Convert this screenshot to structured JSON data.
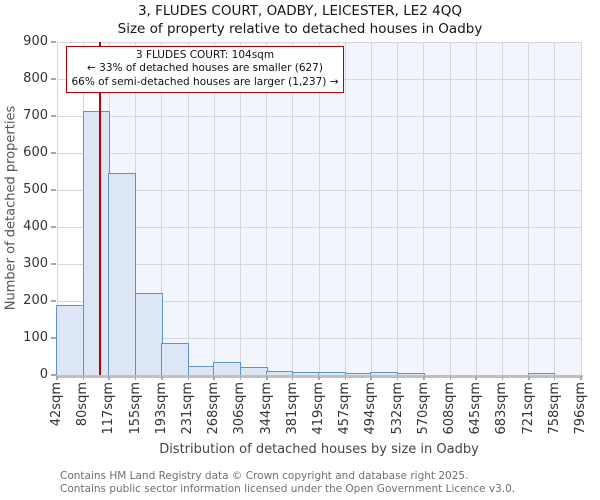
{
  "title": "3, FLUDES COURT, OADBY, LEICESTER, LE2 4QQ",
  "subtitle": "Size of property relative to detached houses in Oadby",
  "annotation": {
    "lines": [
      "3 FLUDES COURT: 104sqm",
      "← 33% of detached houses are smaller (627)",
      "66% of semi-detached houses are larger (1,237) →"
    ]
  },
  "chart_data": {
    "type": "bar",
    "title": "3, FLUDES COURT, OADBY, LEICESTER, LE2 4QQ",
    "subtitle": "Size of property relative to detached houses in Oadby",
    "xlabel": "Distribution of detached houses by size in Oadby",
    "ylabel": "Number of detached properties",
    "ylim": [
      0,
      900
    ],
    "ytick_step": 100,
    "grid": true,
    "legend": false,
    "bin_edges_sqm": [
      42,
      80,
      117,
      155,
      193,
      231,
      268,
      306,
      344,
      381,
      419,
      457,
      494,
      532,
      570,
      608,
      645,
      683,
      721,
      758,
      796
    ],
    "xtick_labels": [
      "42sqm",
      "80sqm",
      "117sqm",
      "155sqm",
      "193sqm",
      "231sqm",
      "268sqm",
      "306sqm",
      "344sqm",
      "381sqm",
      "419sqm",
      "457sqm",
      "494sqm",
      "532sqm",
      "570sqm",
      "608sqm",
      "645sqm",
      "683sqm",
      "721sqm",
      "758sqm",
      "796sqm"
    ],
    "values": [
      188,
      713,
      547,
      222,
      86,
      25,
      35,
      22,
      12,
      8,
      7,
      2,
      7,
      4,
      0,
      0,
      0,
      0,
      4,
      0
    ],
    "marker": {
      "value_sqm": 104,
      "label": "3 FLUDES COURT: 104sqm"
    },
    "colors": {
      "bar_fill": "#dce6f5",
      "bar_border": "#6191cc",
      "marker_line": "#c00000",
      "annotation_border": "#c00000",
      "shade_region": "#f2f5fb",
      "gridline": "#d5d6de",
      "axis_line": "#c1c1c1"
    }
  },
  "footer": {
    "line1": "Contains HM Land Registry data © Crown copyright and database right 2025.",
    "line2": "Contains public sector information licensed under the Open Government Licence v3.0."
  }
}
